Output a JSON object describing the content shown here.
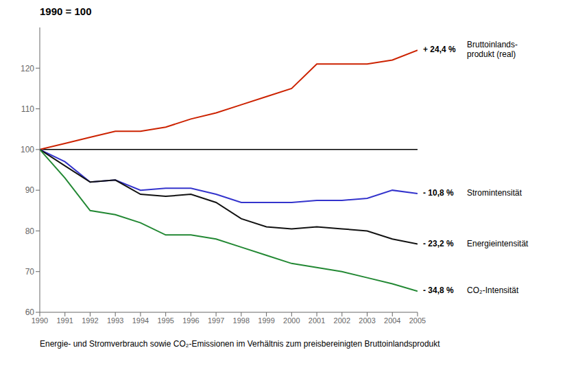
{
  "chart_data": {
    "type": "line",
    "title": "1990 = 100",
    "caption": "Energie- und Stromverbrauch sowie CO₂-Emissionen im Verhältnis zum preisbereinigten Bruttoinlandsprodukt",
    "x": [
      1990,
      1991,
      1992,
      1993,
      1994,
      1995,
      1996,
      1997,
      1998,
      1999,
      2000,
      2001,
      2002,
      2003,
      2004,
      2005
    ],
    "series": [
      {
        "name": "Bruttoinlands-\nprodukt (real)",
        "annotation": "+ 24,4 %",
        "color": "#CC2200",
        "values": [
          100,
          101.5,
          103,
          104.5,
          104.5,
          105.5,
          107.5,
          109,
          111,
          113,
          115,
          121,
          121,
          121,
          122,
          124.4
        ]
      },
      {
        "name": "Stromintensität",
        "annotation": "- 10,8 %",
        "color": "#3333CC",
        "values": [
          100,
          97,
          92,
          92.5,
          90,
          90.5,
          90.5,
          89,
          87,
          87,
          87,
          87.5,
          87.5,
          88,
          90,
          89.2
        ]
      },
      {
        "name": "Energieintensität",
        "annotation": "- 23,2 %",
        "color": "#111111",
        "values": [
          100,
          96,
          92,
          92.5,
          89,
          88.5,
          89,
          87,
          83,
          81,
          80.5,
          81,
          80.5,
          80,
          78,
          76.8
        ]
      },
      {
        "name": "CO₂-Intensität",
        "annotation": "- 34,8 %",
        "color": "#228833",
        "values": [
          100,
          93,
          85,
          84,
          82,
          79,
          79,
          78,
          76,
          74,
          72,
          71,
          70,
          68.5,
          67,
          65.2
        ]
      }
    ],
    "hline": 100,
    "xlim": [
      1990,
      2005
    ],
    "xticks": [
      1990,
      1991,
      1992,
      1993,
      1994,
      1995,
      1996,
      1997,
      1998,
      1999,
      2000,
      2001,
      2002,
      2003,
      2004,
      2005
    ],
    "ylim": [
      60,
      130
    ],
    "yticks": [
      60,
      70,
      80,
      90,
      100,
      110,
      120
    ],
    "grid": false
  }
}
